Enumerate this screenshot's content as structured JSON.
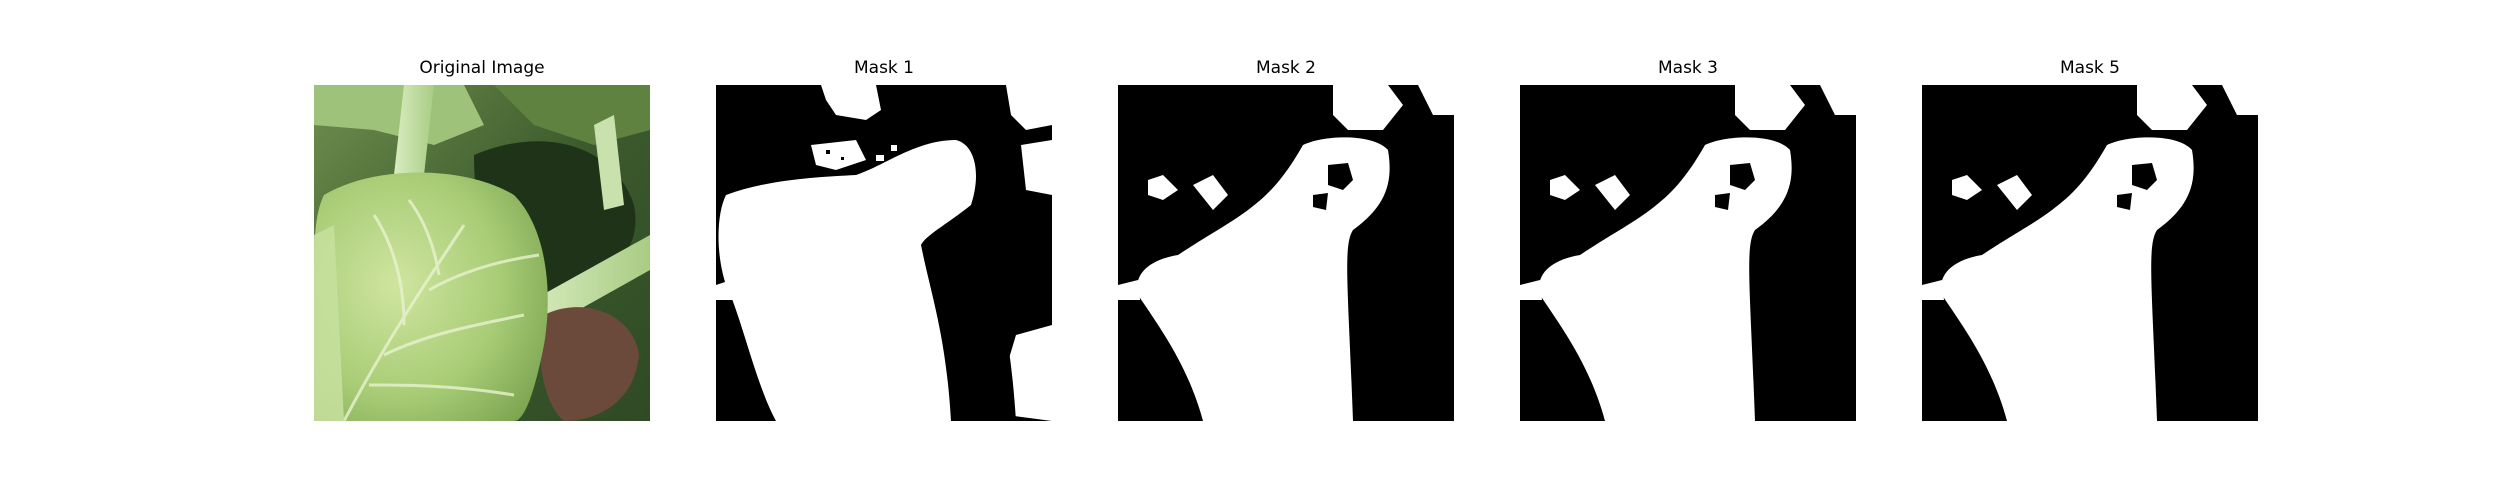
{
  "panels": [
    {
      "title": "Original Image",
      "content": "photo"
    },
    {
      "title": "Mask 1",
      "content": "mask"
    },
    {
      "title": "Mask 2",
      "content": "mask"
    },
    {
      "title": "Mask 3",
      "content": "mask"
    },
    {
      "title": "Mask 5",
      "content": "mask"
    }
  ],
  "colors": {
    "mask_background": "#000000",
    "mask_foreground": "#ffffff",
    "leaf_light": "#b8d98a",
    "leaf_dark": "#2e4a22"
  }
}
